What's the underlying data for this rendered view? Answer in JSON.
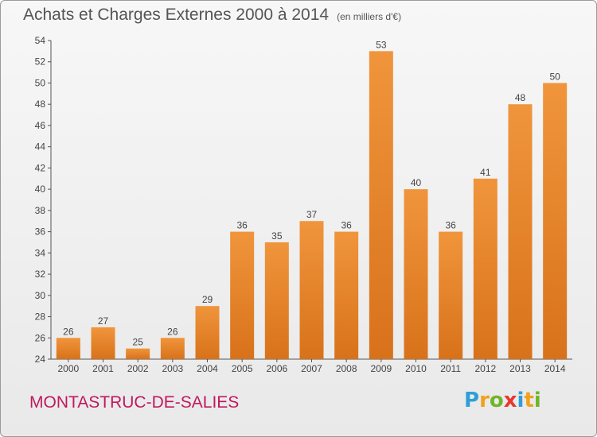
{
  "chart_data": {
    "type": "bar",
    "title": "Achats et Charges Externes 2000 à 2014",
    "subtitle": "(en milliers d'€)",
    "categories": [
      "2000",
      "2001",
      "2002",
      "2003",
      "2004",
      "2005",
      "2006",
      "2007",
      "2008",
      "2009",
      "2010",
      "2011",
      "2012",
      "2013",
      "2014"
    ],
    "values": [
      26,
      27,
      25,
      26,
      29,
      36,
      35,
      37,
      36,
      53,
      40,
      36,
      41,
      48,
      50
    ],
    "ylim": [
      24,
      54
    ],
    "yticks": [
      24,
      26,
      28,
      30,
      32,
      34,
      36,
      38,
      40,
      42,
      44,
      46,
      48,
      50,
      52,
      54
    ],
    "grid": false,
    "legend": "none",
    "bar_color": "#f0953c",
    "bar_color_dark": "#d8721a"
  },
  "footer": {
    "location": "MONTASTRUC-DE-SALIES",
    "location_color": "#c0185e"
  },
  "logo": {
    "letters": [
      "P",
      "r",
      "o",
      "x",
      "i",
      "t",
      "i"
    ],
    "colors": [
      "#2e9fd6",
      "#f0a21a",
      "#6fb52c",
      "#e8382f",
      "#2e9fd6",
      "#f0a21a",
      "#6fb52c"
    ]
  }
}
